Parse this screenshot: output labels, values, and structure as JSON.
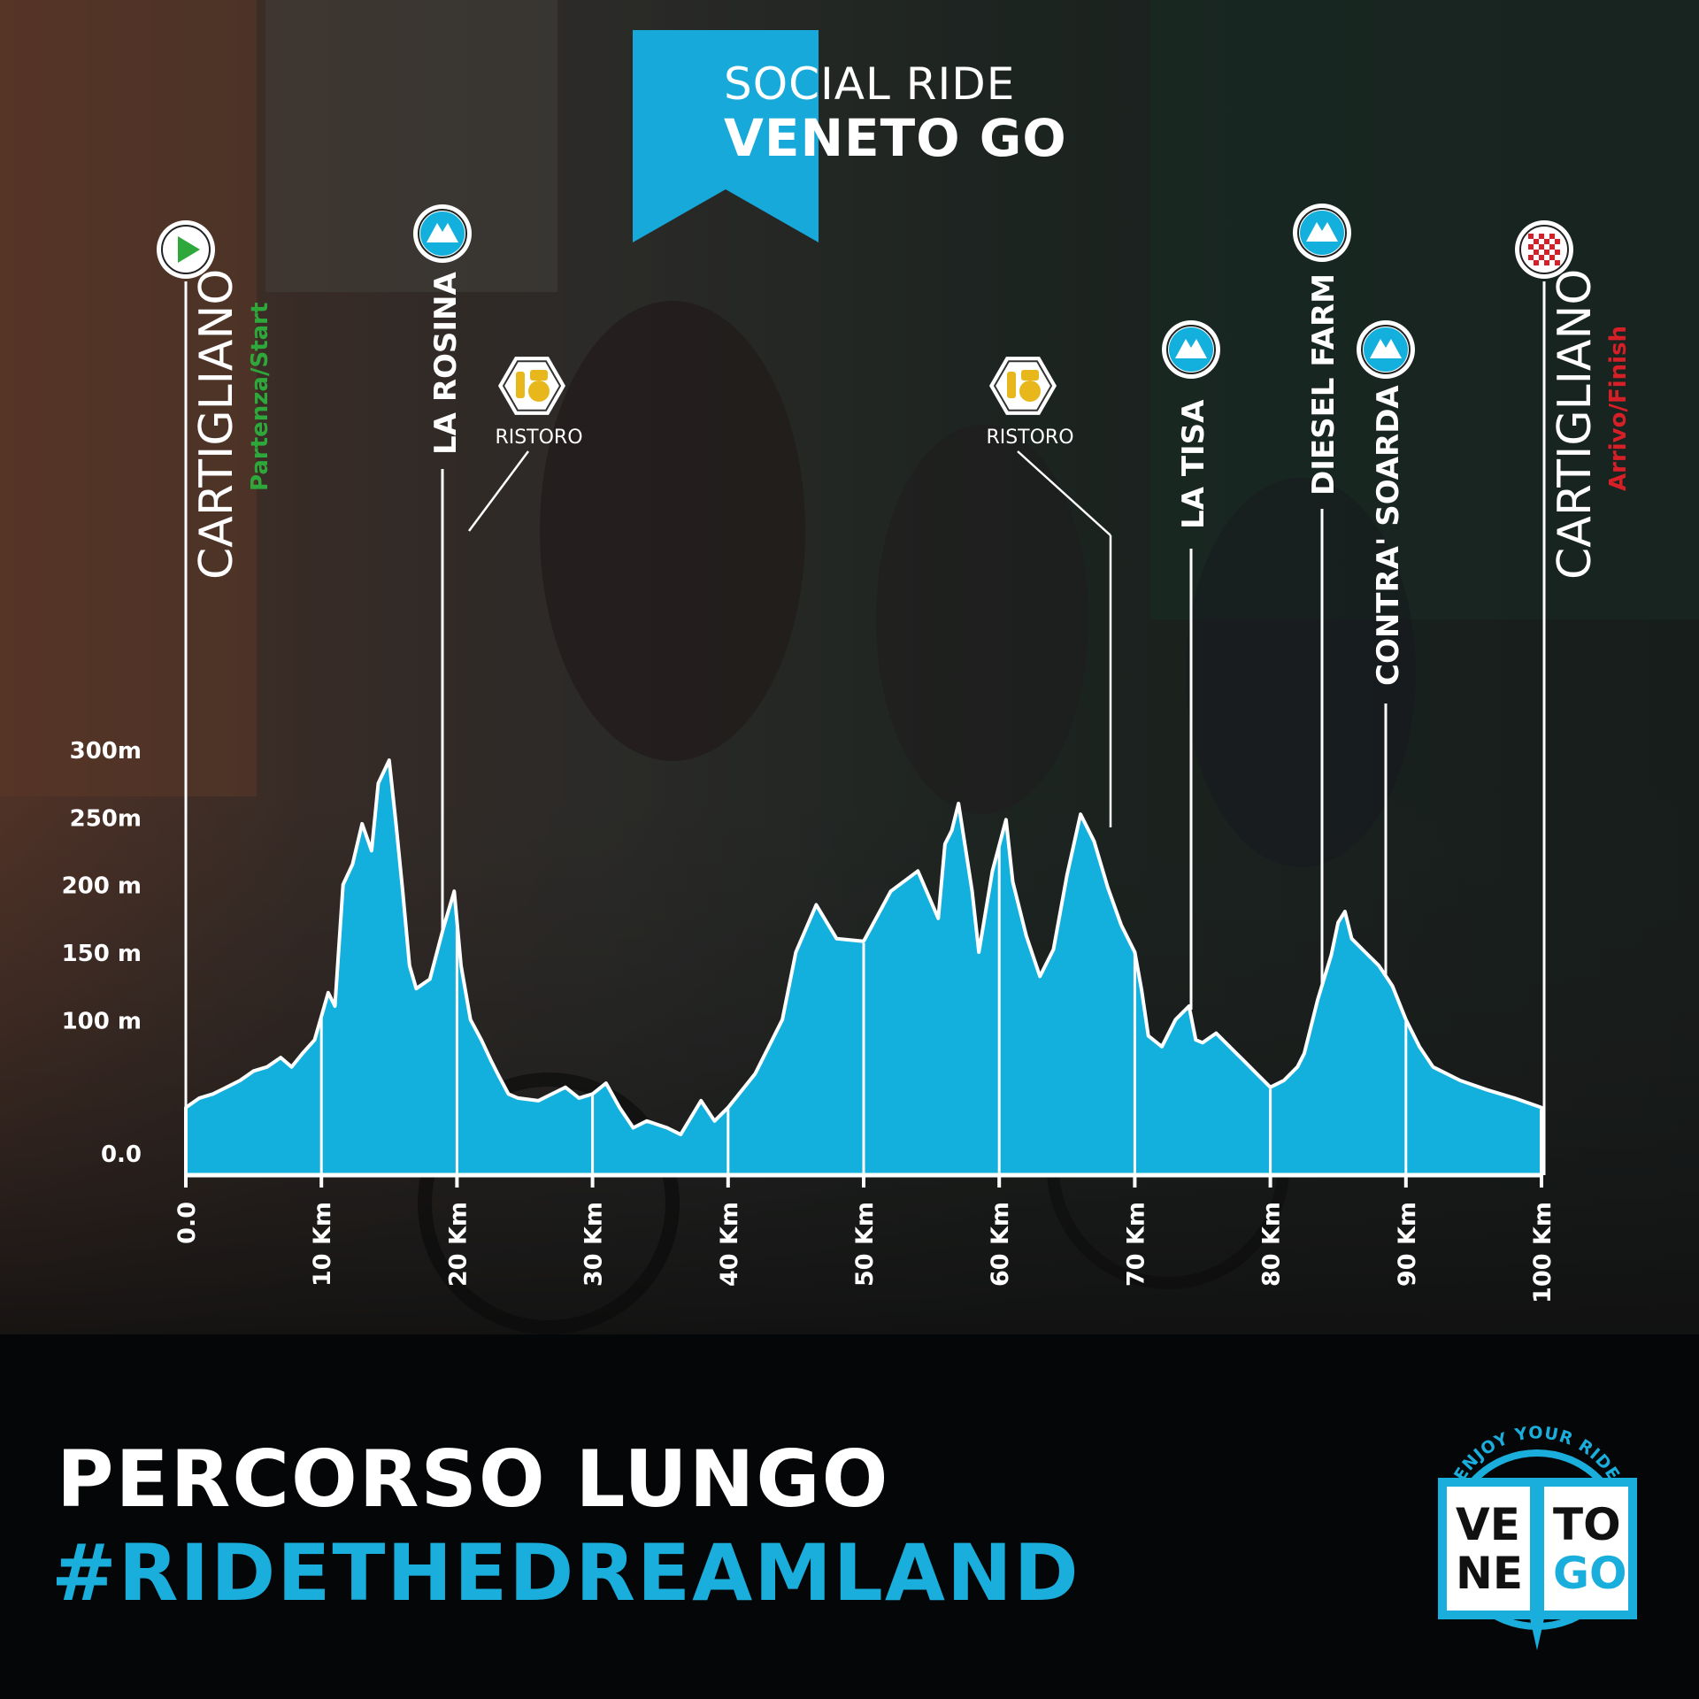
{
  "banner": {
    "line1": "SOCIAL RIDE",
    "line2": "VENETO GO"
  },
  "footer": {
    "title": "PERCORSO LUNGO",
    "hashtag": "#RIDETHEDREAMLAND"
  },
  "logo": {
    "arc_text": "ENJOY YOUR RIDE",
    "left_top": "VE",
    "left_bottom": "NE",
    "right_top": "TO",
    "right_bottom": "GO"
  },
  "colors": {
    "profile_fill": "#14b0dd",
    "banner": "#16a9da",
    "start_green": "#2ea83a",
    "finish_red": "#d61f26",
    "ristoro_gold": "#e8b71c",
    "text_white": "#ffffff"
  },
  "icons": {
    "start": "play-triangle-icon",
    "finish": "checkered-flag-icon",
    "climb": "mountain-icon",
    "ristoro": "food-drink-icon"
  },
  "chart_data": {
    "type": "area",
    "title": "",
    "xlabel": "",
    "ylabel": "",
    "xlim": [
      0,
      100
    ],
    "ylim": [
      0,
      350
    ],
    "grid": false,
    "y_ticks": [
      {
        "value": 0,
        "label": "0.0"
      },
      {
        "value": 100,
        "label": "100 m"
      },
      {
        "value": 150,
        "label": "150 m"
      },
      {
        "value": 200,
        "label": "200 m"
      },
      {
        "value": 250,
        "label": "250m"
      },
      {
        "value": 300,
        "label": "300m"
      }
    ],
    "x_ticks": [
      {
        "value": 0,
        "label": "0.0"
      },
      {
        "value": 10,
        "label": "10 Km"
      },
      {
        "value": 20,
        "label": "20 Km"
      },
      {
        "value": 30,
        "label": "30 Km"
      },
      {
        "value": 40,
        "label": "40 Km"
      },
      {
        "value": 50,
        "label": "50 Km"
      },
      {
        "value": 60,
        "label": "60 Km"
      },
      {
        "value": 70,
        "label": "70 Km"
      },
      {
        "value": 80,
        "label": "80 Km"
      },
      {
        "value": 90,
        "label": "90 Km"
      },
      {
        "value": 100,
        "label": "100 Km"
      }
    ],
    "series": [
      {
        "x": [
          0,
          1,
          2,
          3,
          4,
          5,
          6,
          7,
          7.8,
          8.6,
          9.5,
          10.5,
          11,
          11.6,
          12.3,
          13,
          13.7,
          14.2,
          15,
          15.5,
          16,
          16.5,
          17,
          18,
          19,
          19.8,
          20.3,
          21,
          21.8,
          22.5,
          23,
          23.8,
          24.5,
          26,
          28,
          29,
          30,
          31,
          32,
          33,
          34,
          35.5,
          36.5,
          38,
          39,
          40,
          42,
          44,
          45,
          46.5,
          48,
          50,
          52,
          54,
          55.5,
          56,
          56.5,
          57,
          58,
          58.5,
          59.5,
          60.5,
          61,
          62,
          63,
          64,
          65,
          66,
          67,
          68,
          69,
          70,
          70.5,
          71,
          72,
          73,
          73.5,
          74,
          74.5,
          75,
          76,
          77,
          78,
          79,
          80,
          81,
          82,
          82.5,
          83.5,
          84.5,
          85,
          85.5,
          86,
          87,
          88,
          89,
          90,
          91,
          92,
          94,
          96,
          98,
          100
        ],
        "y": [
          35,
          42,
          45,
          50,
          55,
          62,
          65,
          72,
          65,
          75,
          85,
          120,
          110,
          200,
          215,
          245,
          225,
          275,
          292,
          245,
          195,
          140,
          123,
          130,
          168,
          195,
          140,
          100,
          85,
          70,
          60,
          45,
          42,
          40,
          50,
          42,
          45,
          53,
          35,
          20,
          25,
          20,
          15,
          40,
          25,
          35,
          60,
          100,
          150,
          185,
          160,
          158,
          195,
          210,
          175,
          230,
          240,
          260,
          195,
          150,
          210,
          248,
          202,
          162,
          132,
          152,
          207,
          252,
          232,
          198,
          170,
          150,
          122,
          88,
          80,
          100,
          105,
          110,
          85,
          83,
          90,
          80,
          70,
          60,
          50,
          55,
          65,
          75,
          115,
          148,
          172,
          180,
          160,
          150,
          140,
          125,
          100,
          80,
          65,
          55,
          48,
          42,
          35
        ]
      }
    ],
    "points_of_interest": [
      {
        "km": 0,
        "name": "CARTIGLIANO",
        "sub": "Partenza/Start",
        "type": "start"
      },
      {
        "km": 19,
        "name": "LA ROSINA",
        "type": "climb"
      },
      {
        "km": 20.5,
        "name": "RISTORO",
        "type": "ristoro"
      },
      {
        "km": 68.5,
        "name": "RISTORO",
        "type": "ristoro"
      },
      {
        "km": 74,
        "name": "LA TISA",
        "type": "climb"
      },
      {
        "km": 83.7,
        "name": "DIESEL FARM",
        "type": "climb"
      },
      {
        "km": 88.4,
        "name": "CONTRA' SOARDA",
        "type": "climb"
      },
      {
        "km": 100,
        "name": "CARTIGLIANO",
        "sub": "Arrivo/Finish",
        "type": "finish"
      }
    ]
  }
}
